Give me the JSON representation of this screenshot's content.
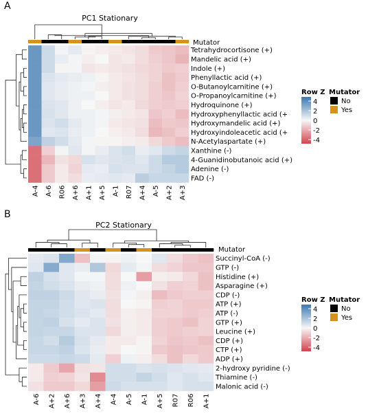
{
  "colors": {
    "high": "#3B78B0",
    "mid": "#F7F7F7",
    "low": "#D2444E",
    "mutator_no": "#000000",
    "mutator_yes": "#D4921E",
    "dendro": "#222222"
  },
  "legend": {
    "scale_title": "Row Z",
    "scale_ticks": [
      "4",
      "2",
      "0",
      "-2",
      "-4"
    ],
    "mutator_title": "Mutator",
    "no_label": "No",
    "yes_label": "Yes"
  },
  "chart_data": [
    {
      "type": "heatmap",
      "panel_label": "A",
      "title": "PC1 Stationary",
      "annotation_label": "Mutator",
      "columns": [
        "A-4",
        "A-6",
        "R06",
        "A+6",
        "A+1",
        "A+5",
        "A-1",
        "R07",
        "A+4",
        "A-5",
        "A+2",
        "A+3"
      ],
      "mutator": [
        "Yes",
        "No",
        "No",
        "Yes",
        "No",
        "No",
        "Yes",
        "No",
        "No",
        "No",
        "No",
        "Yes"
      ],
      "rows": [
        "Tetrahydrocortisone (+)",
        "Mandelic acid (+)",
        "Indole (+)",
        "Phenyllactic acid (+)",
        "O-Butanoylcarnitine (+)",
        "O-Propanoylcarnitine (+)",
        "Hydroquinone (+)",
        "Hydroxyphenyllactic acid (+",
        "Hydroxymandelic acid (+)",
        "Hydroxyindoleacetic acid (+",
        "N-Acetylaspartate (+)",
        "Xanthine (-)",
        "4-Guanidinobutanoic acid (+)",
        "Adenine (-)",
        "FAD (-)"
      ],
      "values": [
        [
          3.0,
          0.9,
          0.1,
          0.4,
          -0.1,
          -0.2,
          -0.3,
          -0.4,
          -0.6,
          -1.0,
          -1.1,
          -1.3
        ],
        [
          3.0,
          0.9,
          0.3,
          0.1,
          -0.2,
          0.0,
          -0.4,
          -0.3,
          -0.6,
          -0.9,
          -1.1,
          -1.5
        ],
        [
          3.0,
          0.9,
          -0.1,
          0.1,
          -0.4,
          -0.3,
          -0.4,
          -0.5,
          -0.7,
          -0.8,
          -1.0,
          -0.9
        ],
        [
          3.0,
          0.6,
          0.4,
          0.3,
          0.2,
          -0.1,
          -0.3,
          -0.4,
          -0.6,
          -0.8,
          -1.2,
          -1.0
        ],
        [
          3.0,
          0.5,
          0.3,
          0.2,
          0.1,
          -0.2,
          -0.3,
          -0.5,
          -0.6,
          -0.9,
          -1.2,
          -0.9
        ],
        [
          3.0,
          0.5,
          0.3,
          0.2,
          0.2,
          0.0,
          -0.3,
          -0.5,
          -0.6,
          -0.9,
          -1.1,
          -0.8
        ],
        [
          3.0,
          0.6,
          0.5,
          0.2,
          0.0,
          -0.2,
          -0.4,
          -0.3,
          -0.7,
          -0.9,
          -1.0,
          -0.9
        ],
        [
          3.0,
          0.7,
          0.5,
          0.2,
          0.2,
          0.1,
          -0.2,
          -0.3,
          -0.4,
          -1.1,
          -0.9,
          -1.3
        ],
        [
          3.0,
          0.6,
          0.8,
          0.4,
          0.2,
          0.1,
          -0.3,
          -0.4,
          -0.5,
          -1.3,
          -1.0,
          -1.1
        ],
        [
          3.0,
          0.5,
          0.6,
          0.3,
          0.2,
          0.0,
          -0.2,
          -0.3,
          -0.6,
          -1.4,
          -1.2,
          -0.9
        ],
        [
          2.6,
          1.2,
          0.8,
          0.4,
          0.1,
          -0.1,
          -0.1,
          -0.2,
          -0.3,
          -0.7,
          -1.0,
          -1.3
        ],
        [
          -3.0,
          -0.9,
          0.1,
          0.5,
          0.1,
          0.3,
          0.6,
          0.8,
          0.3,
          0.5,
          0.9,
          1.1
        ],
        [
          -3.0,
          -1.4,
          -0.5,
          -0.7,
          0.7,
          0.5,
          0.6,
          0.7,
          0.5,
          0.9,
          1.4,
          1.4
        ],
        [
          -3.0,
          -1.0,
          -0.3,
          -0.8,
          0.4,
          0.3,
          0.7,
          0.6,
          0.6,
          0.9,
          1.1,
          1.4
        ],
        [
          -3.0,
          -1.0,
          -0.3,
          -0.6,
          0.3,
          0.4,
          0.5,
          0.4,
          1.3,
          1.0,
          1.0,
          1.0
        ]
      ],
      "color_range": [
        -4,
        4
      ]
    },
    {
      "type": "heatmap",
      "panel_label": "B",
      "title": "PC2 Stationary",
      "annotation_label": "Mutator",
      "columns": [
        "A-6",
        "A+2",
        "A+6",
        "A+3",
        "A+4",
        "A-4",
        "A-5",
        "A-1",
        "A+5",
        "R07",
        "R06",
        "A+1"
      ],
      "mutator": [
        "No",
        "No",
        "No",
        "Yes",
        "No",
        "Yes",
        "No",
        "Yes",
        "No",
        "No",
        "No",
        "No"
      ],
      "rows": [
        "Succinyl-CoA (-)",
        "GTP (-)",
        "Histidine (+)",
        "Asparagine (+)",
        "CDP (-)",
        "ATP (+)",
        "ATP (-)",
        "GTP (+)",
        "Leucine (+)",
        "CDP (+)",
        "CTP (+)",
        "ADP (+)",
        "2-hydroxy pyridine (-)",
        "Thiamine (-)",
        "Malonic acid (-)"
      ],
      "values": [
        [
          0.4,
          0.6,
          2.5,
          -1.2,
          0.1,
          -0.1,
          0.2,
          0.0,
          0.5,
          -0.6,
          -1.0,
          -1.2
        ],
        [
          0.5,
          2.4,
          0.5,
          0.3,
          1.5,
          -0.7,
          0.4,
          0.1,
          -0.6,
          -0.8,
          -1.1,
          -1.1
        ],
        [
          1.2,
          0.7,
          0.5,
          0.1,
          0.1,
          -0.6,
          0.0,
          -2.0,
          -0.2,
          -0.3,
          -0.7,
          -1.2
        ],
        [
          1.1,
          0.8,
          0.6,
          0.3,
          0.2,
          -0.6,
          0.2,
          0.0,
          -0.5,
          -0.9,
          -0.8,
          -1.2
        ],
        [
          1.2,
          1.2,
          0.9,
          0.5,
          0.3,
          -0.5,
          0.1,
          -0.2,
          -1.3,
          -1.0,
          -0.9,
          -0.9
        ],
        [
          1.1,
          1.1,
          0.8,
          0.5,
          0.6,
          -0.6,
          0.0,
          -0.1,
          -0.9,
          -0.8,
          -1.0,
          -1.0
        ],
        [
          1.1,
          1.0,
          0.8,
          0.6,
          0.4,
          -0.6,
          -0.2,
          -0.3,
          -0.8,
          -0.8,
          -1.0,
          -0.9
        ],
        [
          1.1,
          1.2,
          0.7,
          0.4,
          0.6,
          -0.5,
          -0.2,
          -0.3,
          -0.9,
          -1.0,
          -1.2,
          -0.8
        ],
        [
          1.1,
          1.0,
          1.0,
          0.6,
          0.6,
          -0.7,
          -0.2,
          -0.3,
          -0.9,
          -1.0,
          -0.9,
          -0.8
        ],
        [
          1.0,
          0.8,
          1.4,
          0.7,
          0.4,
          -0.3,
          -0.3,
          -0.1,
          -0.8,
          -1.1,
          -1.0,
          -1.2
        ],
        [
          1.0,
          1.0,
          1.2,
          0.6,
          0.3,
          -0.3,
          0.0,
          -0.1,
          -1.0,
          -1.2,
          -1.1,
          -1.0
        ],
        [
          0.9,
          0.9,
          1.0,
          0.9,
          0.4,
          -0.9,
          0.2,
          -0.2,
          -0.6,
          -1.2,
          -0.7,
          -1.0
        ],
        [
          -0.3,
          -1.0,
          -1.8,
          -0.5,
          -0.4,
          0.8,
          0.8,
          0.6,
          0.7,
          0.6,
          0.5,
          0.4
        ],
        [
          -0.3,
          -0.9,
          -0.8,
          -0.4,
          -2.4,
          0.8,
          0.8,
          1.1,
          0.8,
          0.5,
          0.7,
          0.5
        ],
        [
          -0.5,
          -1.0,
          -1.0,
          -0.7,
          -2.0,
          0.9,
          0.7,
          0.7,
          0.7,
          0.5,
          0.7,
          0.7
        ]
      ],
      "color_range": [
        -4,
        4
      ]
    }
  ]
}
